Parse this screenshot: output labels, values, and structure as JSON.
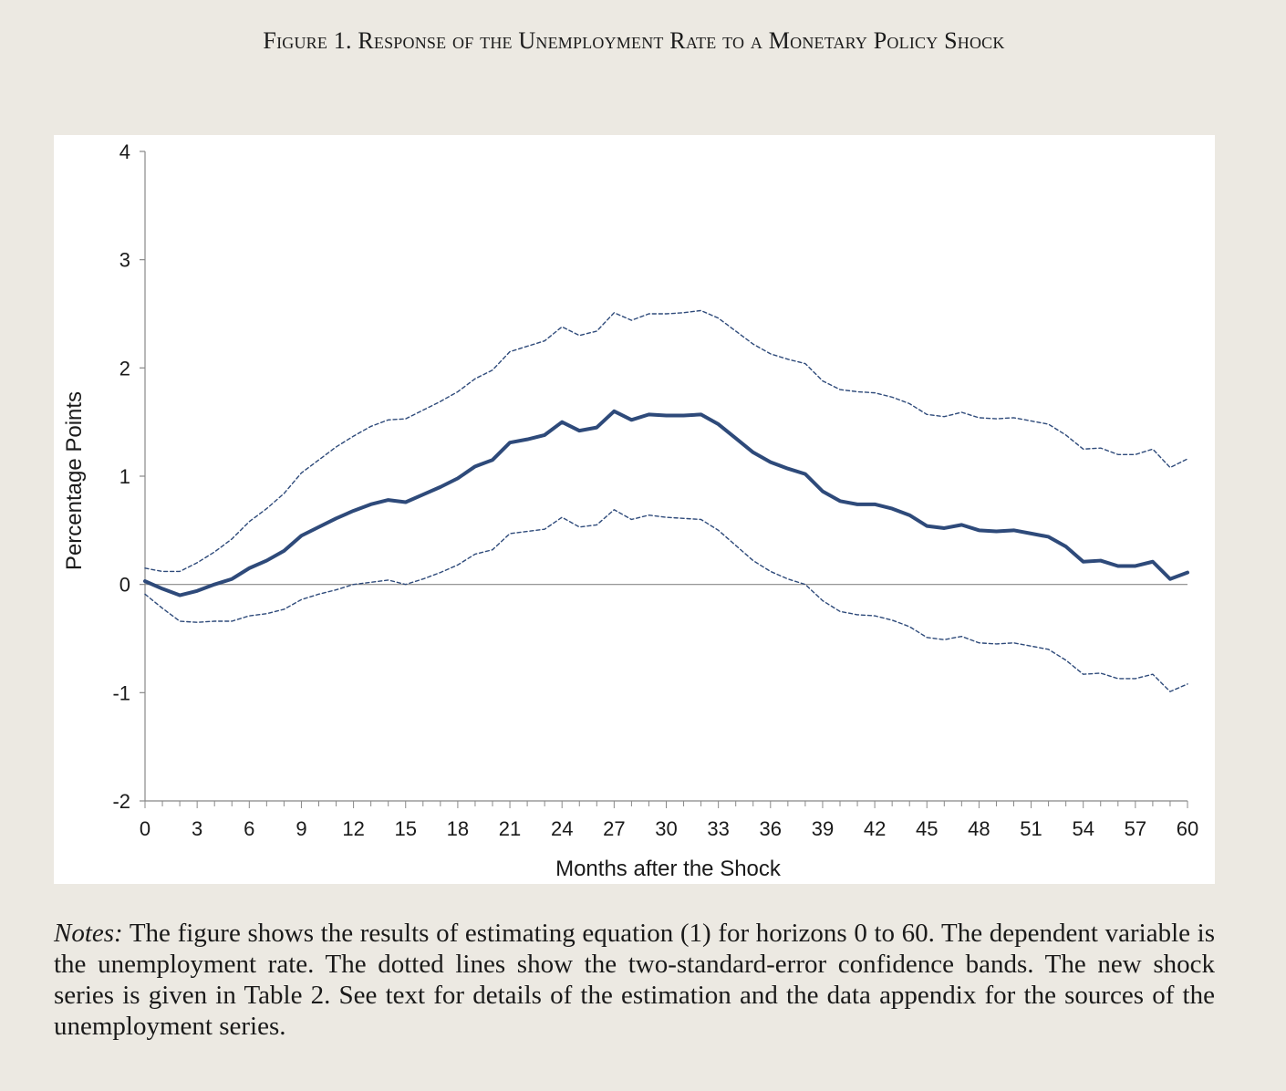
{
  "figure": {
    "title": "Figure 1. Response of the Unemployment Rate to a Monetary Policy Shock"
  },
  "chart_data": {
    "type": "line",
    "title": "",
    "xlabel": "Months after the Shock",
    "ylabel": "Percentage Points",
    "xlim": [
      0,
      60
    ],
    "ylim": [
      -2,
      4
    ],
    "xticks": [
      "0",
      "3",
      "6",
      "9",
      "12",
      "15",
      "18",
      "21",
      "24",
      "27",
      "30",
      "33",
      "36",
      "39",
      "42",
      "45",
      "48",
      "51",
      "54",
      "57",
      "60"
    ],
    "yticks": [
      "-2",
      "-1",
      "0",
      "1",
      "2",
      "3",
      "4"
    ],
    "grid": false,
    "x": [
      0,
      1,
      2,
      3,
      4,
      5,
      6,
      7,
      8,
      9,
      10,
      11,
      12,
      13,
      14,
      15,
      16,
      17,
      18,
      19,
      20,
      21,
      22,
      23,
      24,
      25,
      26,
      27,
      28,
      29,
      30,
      31,
      32,
      33,
      34,
      35,
      36,
      37,
      38,
      39,
      40,
      41,
      42,
      43,
      44,
      45,
      46,
      47,
      48,
      49,
      50,
      51,
      52,
      53,
      54,
      55,
      56,
      57,
      58,
      59,
      60
    ],
    "series": [
      {
        "role": "point_estimate",
        "style": "solid",
        "color": "#2e4a7a",
        "values": [
          0.03,
          -0.04,
          -0.1,
          -0.06,
          0.0,
          0.05,
          0.15,
          0.22,
          0.31,
          0.45,
          0.53,
          0.61,
          0.68,
          0.74,
          0.78,
          0.76,
          0.83,
          0.9,
          0.98,
          1.09,
          1.15,
          1.31,
          1.34,
          1.38,
          1.5,
          1.42,
          1.45,
          1.6,
          1.52,
          1.57,
          1.56,
          1.56,
          1.57,
          1.48,
          1.35,
          1.22,
          1.13,
          1.07,
          1.02,
          0.86,
          0.77,
          0.74,
          0.74,
          0.7,
          0.64,
          0.54,
          0.52,
          0.55,
          0.5,
          0.49,
          0.5,
          0.47,
          0.44,
          0.35,
          0.21,
          0.22,
          0.17,
          0.17,
          0.21,
          0.05,
          0.11
        ]
      },
      {
        "role": "upper_band",
        "style": "dashed",
        "color": "#2e4a7a",
        "values": [
          0.15,
          0.12,
          0.12,
          0.2,
          0.3,
          0.42,
          0.58,
          0.7,
          0.84,
          1.03,
          1.15,
          1.27,
          1.37,
          1.46,
          1.52,
          1.53,
          1.61,
          1.69,
          1.78,
          1.9,
          1.98,
          2.15,
          2.2,
          2.25,
          2.38,
          2.3,
          2.34,
          2.51,
          2.44,
          2.5,
          2.5,
          2.51,
          2.53,
          2.46,
          2.34,
          2.22,
          2.13,
          2.08,
          2.04,
          1.88,
          1.8,
          1.78,
          1.77,
          1.73,
          1.67,
          1.57,
          1.55,
          1.59,
          1.54,
          1.53,
          1.54,
          1.51,
          1.48,
          1.38,
          1.25,
          1.26,
          1.2,
          1.2,
          1.25,
          1.08,
          1.16
        ]
      },
      {
        "role": "lower_band",
        "style": "dashed",
        "color": "#2e4a7a",
        "values": [
          -0.09,
          -0.22,
          -0.34,
          -0.35,
          -0.34,
          -0.34,
          -0.29,
          -0.27,
          -0.23,
          -0.14,
          -0.09,
          -0.05,
          0.0,
          0.02,
          0.04,
          0.0,
          0.05,
          0.11,
          0.18,
          0.28,
          0.32,
          0.47,
          0.49,
          0.51,
          0.62,
          0.53,
          0.55,
          0.69,
          0.6,
          0.64,
          0.62,
          0.61,
          0.6,
          0.5,
          0.36,
          0.22,
          0.12,
          0.05,
          0.0,
          -0.15,
          -0.25,
          -0.28,
          -0.29,
          -0.33,
          -0.39,
          -0.49,
          -0.51,
          -0.48,
          -0.54,
          -0.55,
          -0.54,
          -0.57,
          -0.6,
          -0.7,
          -0.83,
          -0.82,
          -0.87,
          -0.87,
          -0.83,
          -0.99,
          -0.92
        ]
      }
    ]
  },
  "notes": {
    "label": "Notes:",
    "text": " The figure shows the results of estimating equation (1) for horizons 0 to 60. The dependent variable is the unemployment rate. The dotted lines show the two-standard-error confidence bands. The new shock series is given in Table 2. See text for details of the estimation and the data appendix for the sources of the unemployment series."
  }
}
